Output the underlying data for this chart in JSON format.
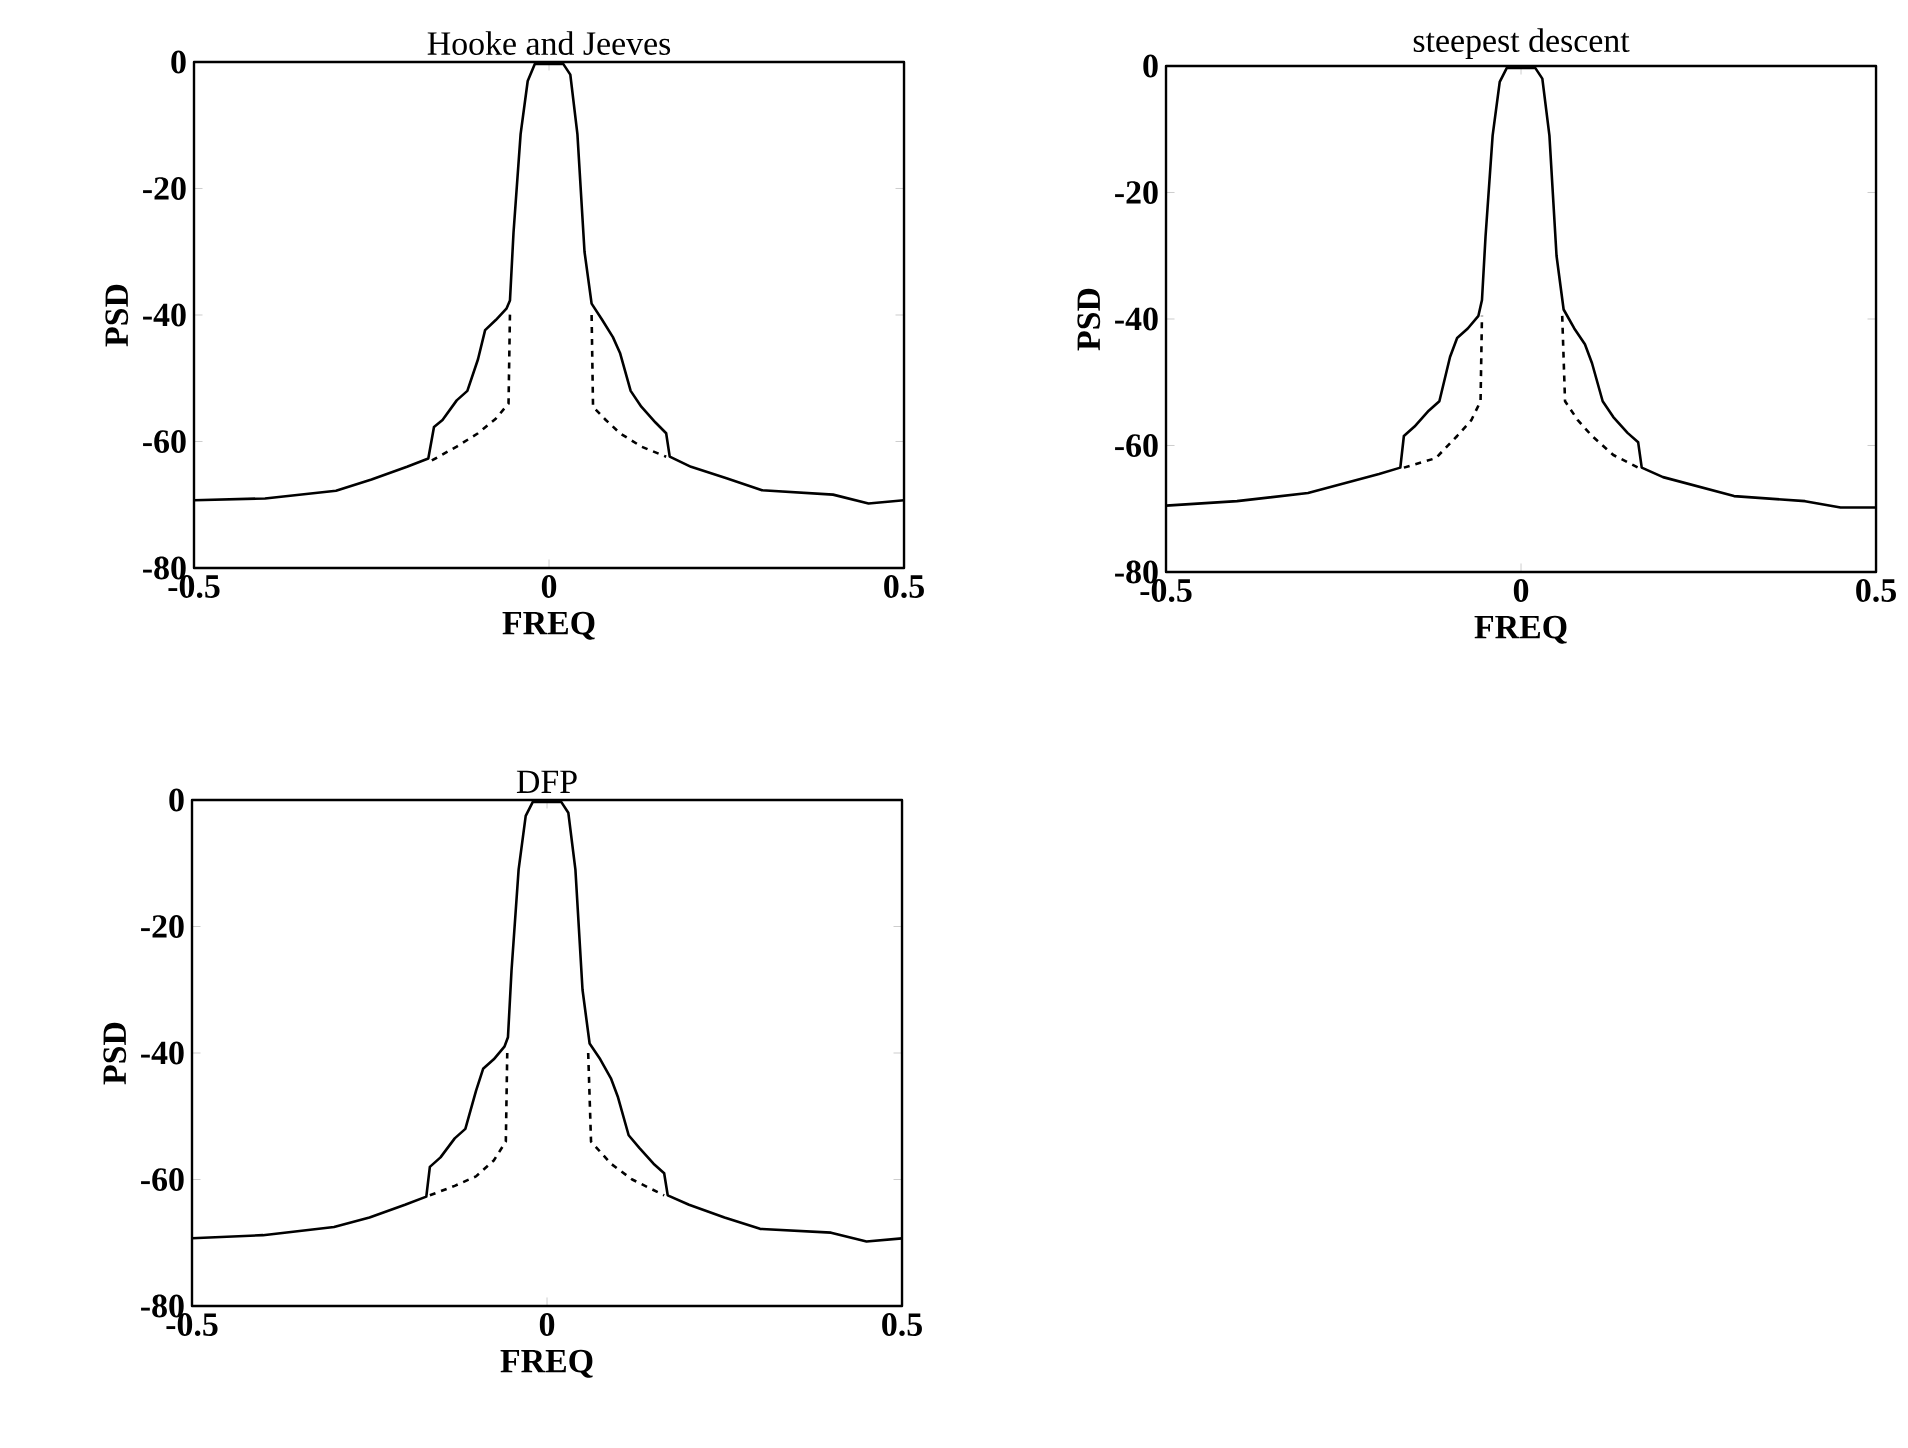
{
  "chart_data": [
    {
      "type": "line",
      "title": "Hooke and Jeeves",
      "xlabel": "FREQ",
      "ylabel": "PSD",
      "xlim": [
        -0.5,
        0.5
      ],
      "ylim": [
        -80,
        0
      ],
      "xticks": [
        -0.5,
        0,
        0.5
      ],
      "yticks": [
        -80,
        -60,
        -40,
        -20,
        0
      ],
      "series": [
        {
          "color": "#000000",
          "line_style": "solid",
          "x": [
            -0.5,
            -0.4,
            -0.3,
            -0.25,
            -0.2,
            -0.17,
            -0.162,
            -0.15,
            -0.13,
            -0.115,
            -0.1,
            -0.09,
            -0.075,
            -0.06,
            -0.055,
            -0.05,
            -0.04,
            -0.03,
            -0.02,
            0,
            0.02,
            0.03,
            0.04,
            0.05,
            0.06,
            0.075,
            0.09,
            0.1,
            0.115,
            0.13,
            0.15,
            0.165,
            0.17,
            0.2,
            0.25,
            0.3,
            0.4,
            0.45,
            0.5
          ],
          "values": [
            -69.3,
            -69,
            -67.8,
            -66,
            -64,
            -62.7,
            -57.7,
            -56.6,
            -53.5,
            -52,
            -47,
            -42.4,
            -40.8,
            -39,
            -37.7,
            -27,
            -11.4,
            -3,
            -0.3,
            -0.3,
            -0.3,
            -2,
            -11.4,
            -30,
            -38.2,
            -40.8,
            -43.5,
            -46,
            -52,
            -54.5,
            -57,
            -58.7,
            -62.4,
            -64,
            -65.8,
            -67.7,
            -68.4,
            -69.8,
            -69.3
          ]
        },
        {
          "color": "#000000",
          "line_style": "dashed",
          "x": [
            -0.165,
            -0.13,
            -0.1,
            -0.075,
            -0.057,
            -0.055,
            null,
            0.06,
            0.062,
            0.08,
            0.1,
            0.13,
            0.165
          ],
          "values": [
            -63,
            -60.8,
            -58.7,
            -56.4,
            -54,
            -39.8,
            null,
            -40,
            -54.5,
            -56.6,
            -58.7,
            -60.8,
            -62.4
          ]
        }
      ]
    },
    {
      "type": "line",
      "title": "steepest descent",
      "xlabel": "FREQ",
      "ylabel": "PSD",
      "xlim": [
        -0.5,
        0.5
      ],
      "ylim": [
        -80,
        0
      ],
      "xticks": [
        -0.5,
        0,
        0.5
      ],
      "yticks": [
        -80,
        -60,
        -40,
        -20,
        0
      ],
      "series": [
        {
          "color": "#000000",
          "line_style": "solid",
          "x": [
            -0.5,
            -0.4,
            -0.3,
            -0.25,
            -0.2,
            -0.17,
            -0.165,
            -0.15,
            -0.13,
            -0.115,
            -0.1,
            -0.09,
            -0.075,
            -0.06,
            -0.055,
            -0.05,
            -0.04,
            -0.03,
            -0.02,
            0,
            0.02,
            0.03,
            0.04,
            0.05,
            0.06,
            0.075,
            0.09,
            0.1,
            0.115,
            0.13,
            0.15,
            0.165,
            0.17,
            0.2,
            0.25,
            0.3,
            0.4,
            0.45,
            0.5
          ],
          "values": [
            -69.5,
            -68.8,
            -67.5,
            -66,
            -64.5,
            -63.5,
            -58.5,
            -57,
            -54.5,
            -53,
            -46,
            -43,
            -41.5,
            -39.5,
            -37,
            -27,
            -11,
            -2.5,
            -0.3,
            -0.3,
            -0.3,
            -2,
            -11,
            -30,
            -38.5,
            -41.5,
            -44,
            -47,
            -53,
            -55.5,
            -58,
            -59.5,
            -63.5,
            -65,
            -66.5,
            -68,
            -68.8,
            -69.8,
            -69.8
          ]
        },
        {
          "color": "#000000",
          "line_style": "dashed",
          "x": [
            -0.165,
            -0.12,
            -0.09,
            -0.07,
            -0.057,
            -0.055,
            null,
            0.058,
            0.062,
            0.08,
            0.1,
            0.13,
            0.165
          ],
          "values": [
            -63.5,
            -62,
            -58.5,
            -56,
            -53,
            -39.5,
            null,
            -39.5,
            -53,
            -56,
            -58.5,
            -61.5,
            -63.5
          ]
        }
      ]
    },
    {
      "type": "line",
      "title": "DFP",
      "xlabel": "FREQ",
      "ylabel": "PSD",
      "xlim": [
        -0.5,
        0.5
      ],
      "ylim": [
        -80,
        0
      ],
      "xticks": [
        -0.5,
        0,
        0.5
      ],
      "yticks": [
        -80,
        -60,
        -40,
        -20,
        0
      ],
      "series": [
        {
          "color": "#000000",
          "line_style": "solid",
          "x": [
            -0.5,
            -0.4,
            -0.3,
            -0.25,
            -0.2,
            -0.17,
            -0.165,
            -0.15,
            -0.13,
            -0.115,
            -0.1,
            -0.09,
            -0.075,
            -0.06,
            -0.055,
            -0.05,
            -0.04,
            -0.03,
            -0.02,
            0,
            0.02,
            0.03,
            0.04,
            0.05,
            0.06,
            0.075,
            0.09,
            0.1,
            0.115,
            0.13,
            0.15,
            0.165,
            0.17,
            0.2,
            0.25,
            0.3,
            0.4,
            0.45,
            0.5
          ],
          "values": [
            -69.3,
            -68.8,
            -67.5,
            -66,
            -64,
            -62.7,
            -58,
            -56.5,
            -53.5,
            -52,
            -46,
            -42.5,
            -41,
            -39,
            -37.5,
            -27,
            -11,
            -2.5,
            -0.3,
            -0.3,
            -0.3,
            -2,
            -11,
            -30,
            -38.5,
            -41,
            -44,
            -47,
            -53,
            -55,
            -57.5,
            -59,
            -62.5,
            -64,
            -66,
            -67.8,
            -68.4,
            -69.8,
            -69.3
          ]
        },
        {
          "color": "#000000",
          "line_style": "dashed",
          "x": [
            -0.165,
            -0.13,
            -0.1,
            -0.075,
            -0.058,
            -0.056,
            null,
            0.058,
            0.062,
            0.09,
            0.12,
            0.165
          ],
          "values": [
            -62.5,
            -61,
            -59.5,
            -57,
            -54,
            -40,
            null,
            -40,
            -54,
            -57.5,
            -60,
            -62.5
          ]
        }
      ]
    }
  ]
}
